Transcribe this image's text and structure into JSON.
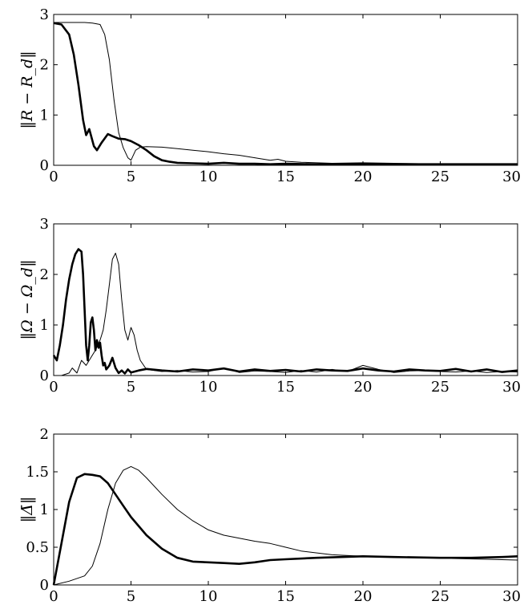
{
  "chart_data": [
    {
      "type": "line",
      "ylabel": "‖R − R_d‖",
      "xlim": [
        0,
        30
      ],
      "ylim": [
        0,
        3
      ],
      "xticks": [
        "0",
        "5",
        "10",
        "15",
        "20",
        "25",
        "30"
      ],
      "yticks": [
        "0",
        "1",
        "2",
        "3"
      ],
      "grid": false,
      "series": [
        {
          "style": "thick",
          "x": [
            0,
            0.5,
            1,
            1.3,
            1.6,
            1.9,
            2.1,
            2.3,
            2.6,
            2.8,
            3.1,
            3.5,
            3.8,
            4.2,
            4.6,
            5,
            5.5,
            6,
            6.5,
            7,
            7.5,
            8,
            9,
            10,
            11,
            12,
            13,
            14,
            15,
            17,
            20,
            25,
            30
          ],
          "y": [
            2.83,
            2.8,
            2.6,
            2.2,
            1.6,
            0.9,
            0.6,
            0.72,
            0.38,
            0.3,
            0.45,
            0.62,
            0.58,
            0.53,
            0.52,
            0.48,
            0.4,
            0.3,
            0.18,
            0.1,
            0.07,
            0.05,
            0.04,
            0.03,
            0.05,
            0.03,
            0.03,
            0.02,
            0.03,
            0.02,
            0.02,
            0.02,
            0.02
          ]
        },
        {
          "style": "thin",
          "x": [
            0,
            1,
            2,
            2.5,
            3,
            3.3,
            3.6,
            3.9,
            4.2,
            4.5,
            4.8,
            5,
            5.3,
            5.6,
            6,
            7,
            8,
            9,
            10,
            11,
            12,
            13,
            14,
            14.5,
            15,
            16,
            18,
            20,
            22,
            24,
            26,
            28,
            30
          ],
          "y": [
            2.84,
            2.84,
            2.84,
            2.83,
            2.8,
            2.6,
            2.1,
            1.3,
            0.65,
            0.35,
            0.15,
            0.1,
            0.3,
            0.36,
            0.37,
            0.36,
            0.33,
            0.3,
            0.27,
            0.23,
            0.2,
            0.15,
            0.1,
            0.12,
            0.08,
            0.06,
            0.04,
            0.05,
            0.04,
            0.03,
            0.03,
            0.03,
            0.03
          ]
        }
      ]
    },
    {
      "type": "line",
      "ylabel": "‖Ω − Ω_d‖",
      "xlim": [
        0,
        30
      ],
      "ylim": [
        0,
        3
      ],
      "xticks": [
        "0",
        "5",
        "10",
        "15",
        "20",
        "25",
        "30"
      ],
      "yticks": [
        "0",
        "1",
        "2",
        "3"
      ],
      "grid": false,
      "series": [
        {
          "style": "thick",
          "x": [
            0,
            0.2,
            0.4,
            0.6,
            0.8,
            1,
            1.2,
            1.4,
            1.6,
            1.8,
            1.9,
            2,
            2.1,
            2.2,
            2.3,
            2.4,
            2.5,
            2.6,
            2.7,
            2.8,
            2.9,
            3,
            3.1,
            3.2,
            3.3,
            3.4,
            3.6,
            3.8,
            4,
            4.2,
            4.4,
            4.6,
            4.8,
            5,
            5.5,
            6,
            7,
            8,
            9,
            10,
            11,
            12,
            13,
            14,
            15,
            16,
            17,
            18,
            19,
            20,
            21,
            22,
            23,
            24,
            25,
            26,
            27,
            28,
            29,
            30
          ],
          "y": [
            0.4,
            0.3,
            0.6,
            1.0,
            1.5,
            1.9,
            2.2,
            2.4,
            2.5,
            2.45,
            2.0,
            1.3,
            0.6,
            0.3,
            0.6,
            1.05,
            1.15,
            0.9,
            0.5,
            0.7,
            0.55,
            0.65,
            0.4,
            0.2,
            0.25,
            0.12,
            0.2,
            0.35,
            0.15,
            0.05,
            0.1,
            0.04,
            0.12,
            0.06,
            0.1,
            0.13,
            0.1,
            0.08,
            0.12,
            0.1,
            0.14,
            0.08,
            0.12,
            0.09,
            0.11,
            0.08,
            0.12,
            0.1,
            0.09,
            0.14,
            0.1,
            0.08,
            0.12,
            0.1,
            0.09,
            0.13,
            0.08,
            0.12,
            0.07,
            0.1
          ]
        },
        {
          "style": "thin",
          "x": [
            0,
            0.5,
            1,
            1.2,
            1.5,
            1.8,
            2.1,
            2.4,
            2.7,
            3,
            3.2,
            3.4,
            3.6,
            3.8,
            4,
            4.2,
            4.4,
            4.6,
            4.8,
            5,
            5.2,
            5.4,
            5.6,
            6,
            7,
            8,
            9,
            10,
            11,
            12,
            13,
            14,
            15,
            16,
            17,
            18,
            19,
            20,
            21,
            22,
            23,
            24,
            25,
            26,
            27,
            28,
            29,
            30
          ],
          "y": [
            0,
            0,
            0.05,
            0.15,
            0.05,
            0.3,
            0.2,
            0.35,
            0.5,
            0.7,
            0.9,
            1.3,
            1.8,
            2.3,
            2.42,
            2.2,
            1.5,
            0.9,
            0.7,
            0.95,
            0.8,
            0.5,
            0.3,
            0.12,
            0.08,
            0.1,
            0.07,
            0.08,
            0.15,
            0.06,
            0.09,
            0.08,
            0.06,
            0.1,
            0.07,
            0.12,
            0.08,
            0.2,
            0.12,
            0.06,
            0.09,
            0.1,
            0.08,
            0.07,
            0.09,
            0.06,
            0.08,
            0.07
          ]
        }
      ]
    },
    {
      "type": "line",
      "ylabel": "‖Δ̄‖",
      "xlim": [
        0,
        30
      ],
      "ylim": [
        0,
        2
      ],
      "xticks": [
        "0",
        "5",
        "10",
        "15",
        "20",
        "25",
        "30"
      ],
      "yticks": [
        "0",
        "0.5",
        "1",
        "1.5",
        "2"
      ],
      "grid": false,
      "series": [
        {
          "style": "thick",
          "x": [
            0,
            0.5,
            1,
            1.5,
            2,
            2.5,
            3,
            3.5,
            4,
            4.5,
            5,
            6,
            7,
            8,
            9,
            10,
            11,
            12,
            13,
            14,
            15,
            17,
            20,
            22,
            25,
            27,
            29,
            30
          ],
          "y": [
            0,
            0.55,
            1.1,
            1.42,
            1.47,
            1.46,
            1.44,
            1.35,
            1.2,
            1.05,
            0.9,
            0.66,
            0.48,
            0.36,
            0.31,
            0.3,
            0.29,
            0.28,
            0.3,
            0.33,
            0.34,
            0.36,
            0.38,
            0.37,
            0.36,
            0.36,
            0.37,
            0.38
          ]
        },
        {
          "style": "thin",
          "x": [
            0,
            1,
            2,
            2.5,
            3,
            3.5,
            4,
            4.5,
            5,
            5.5,
            6,
            7,
            8,
            9,
            10,
            11,
            12,
            13,
            14,
            15,
            16,
            18,
            20,
            22,
            24,
            26,
            28,
            30
          ],
          "y": [
            0,
            0.05,
            0.12,
            0.25,
            0.55,
            1.0,
            1.35,
            1.52,
            1.57,
            1.52,
            1.42,
            1.2,
            1.0,
            0.85,
            0.73,
            0.66,
            0.62,
            0.58,
            0.55,
            0.5,
            0.45,
            0.4,
            0.38,
            0.37,
            0.36,
            0.35,
            0.34,
            0.33
          ]
        }
      ]
    }
  ]
}
